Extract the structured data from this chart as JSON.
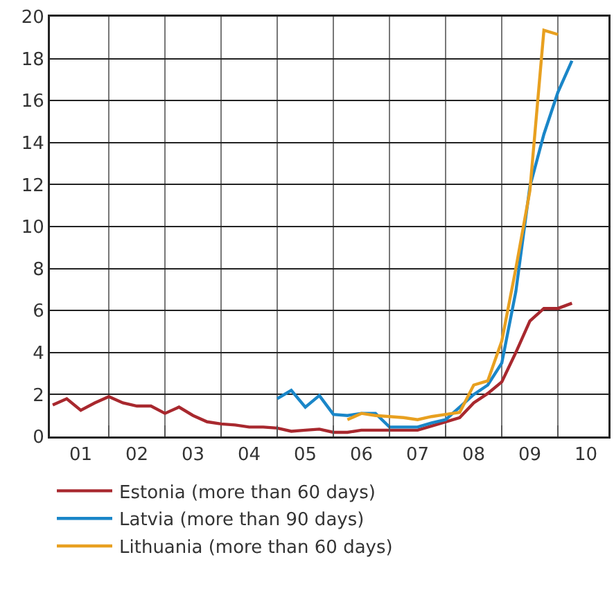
{
  "chart_data": {
    "type": "line",
    "x": [
      0.5,
      0.75,
      1,
      1.25,
      1.5,
      1.75,
      2,
      2.25,
      2.5,
      2.75,
      3,
      3.25,
      3.5,
      3.75,
      4,
      4.25,
      4.5,
      4.75,
      5,
      5.25,
      5.5,
      5.75,
      6,
      6.25,
      6.5,
      6.75,
      7,
      7.25,
      7.5,
      7.75,
      8,
      8.25,
      8.5,
      8.75,
      9,
      9.25,
      9.5,
      9.75
    ],
    "series": [
      {
        "name": "Estonia (more than 60 days)",
        "color": "#a8282e",
        "values": [
          1.5,
          1.8,
          1.25,
          1.6,
          1.9,
          1.6,
          1.45,
          1.45,
          1.1,
          1.4,
          1.0,
          0.7,
          0.6,
          0.55,
          0.45,
          0.45,
          0.4,
          0.25,
          0.3,
          0.35,
          0.2,
          0.2,
          0.3,
          0.3,
          0.3,
          0.3,
          0.3,
          0.5,
          0.7,
          0.9,
          1.6,
          2.05,
          2.6,
          4.0,
          5.5,
          6.1,
          6.1,
          6.35
        ]
      },
      {
        "name": "Latvia (more than 90 days)",
        "color": "#1a86c8",
        "x": [
          4.5,
          4.75,
          5,
          5.25,
          5.5,
          5.75,
          6,
          6.25,
          6.5,
          6.75,
          7,
          7.25,
          7.5,
          7.75,
          8,
          8.25,
          8.5,
          8.75,
          9,
          9.25,
          9.5,
          9.75
        ],
        "values": [
          1.8,
          2.2,
          1.4,
          1.95,
          1.05,
          1.0,
          1.1,
          1.1,
          0.45,
          0.45,
          0.45,
          0.65,
          0.8,
          1.4,
          2.0,
          2.45,
          3.5,
          6.9,
          11.9,
          14.4,
          16.4,
          17.9
        ]
      },
      {
        "name": "Lithuania (more than 60 days)",
        "color": "#e8a020",
        "x": [
          5.75,
          6,
          6.25,
          6.5,
          6.75,
          7,
          7.25,
          7.5,
          7.75,
          8,
          8.25,
          8.5,
          8.75,
          9,
          9.25,
          9.5
        ],
        "values": [
          0.8,
          1.1,
          1.0,
          0.95,
          0.9,
          0.8,
          0.95,
          1.05,
          1.15,
          2.45,
          2.65,
          4.55,
          8.0,
          11.7,
          19.35,
          19.15
        ]
      }
    ],
    "xlim": [
      0.45,
      10.4
    ],
    "xticks": [
      {
        "value": 1,
        "label": "01"
      },
      {
        "value": 2,
        "label": "02"
      },
      {
        "value": 3,
        "label": "03"
      },
      {
        "value": 4,
        "label": "04"
      },
      {
        "value": 5,
        "label": "05"
      },
      {
        "value": 6,
        "label": "06"
      },
      {
        "value": 7,
        "label": "07"
      },
      {
        "value": 8,
        "label": "08"
      },
      {
        "value": 9,
        "label": "09"
      },
      {
        "value": 10,
        "label": "10"
      },
      {
        "value": 1.5,
        "label": null
      },
      {
        "value": 2.5,
        "label": null
      },
      {
        "value": 3.5,
        "label": null
      },
      {
        "value": 4.5,
        "label": null
      },
      {
        "value": 5.5,
        "label": null
      },
      {
        "value": 6.5,
        "label": null
      },
      {
        "value": 7.5,
        "label": null
      },
      {
        "value": 8.5,
        "label": null
      },
      {
        "value": 9.5,
        "label": null
      }
    ],
    "ylim": [
      0,
      20
    ],
    "yticks": [
      0,
      2,
      4,
      6,
      8,
      10,
      12,
      14,
      16,
      18,
      20
    ],
    "grid": true,
    "legend": "bottom",
    "marker": "none",
    "line_style": "solid"
  }
}
